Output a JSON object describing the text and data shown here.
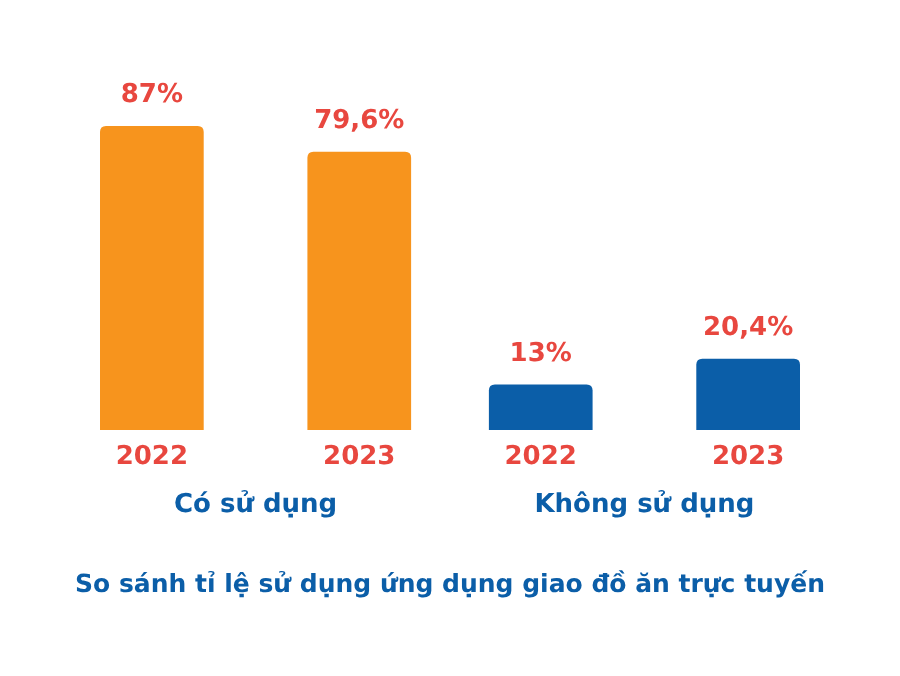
{
  "chart_data": {
    "type": "bar",
    "title": "So sánh tỉ lệ sử dụng ứng dụng giao đồ ăn trực tuyến",
    "categories": [
      "Có sử dụng",
      "Không sử dụng"
    ],
    "series": [
      {
        "name": "2022",
        "colors": [
          "#f7941d",
          "#0b5ea8"
        ],
        "values": [
          87,
          13
        ],
        "value_labels": [
          "87%",
          "13%"
        ]
      },
      {
        "name": "2023",
        "colors": [
          "#f7941d",
          "#0b5ea8"
        ],
        "values": [
          79.6,
          20.4
        ],
        "value_labels": [
          "79,6%",
          "20,4%"
        ]
      }
    ]
  }
}
